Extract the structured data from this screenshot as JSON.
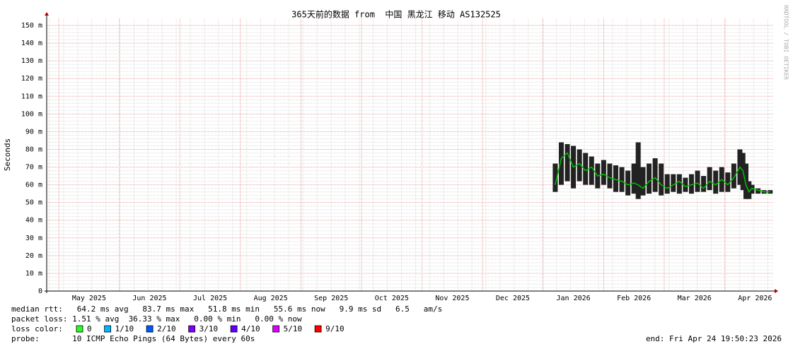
{
  "chart_data": {
    "type": "smoke",
    "title": "365天前的数据 from  中国 黑龙江 移动 AS132525",
    "y_label": "Seconds",
    "watermark": "RRDTOOL / TOBI OETIKER",
    "xlim": [
      -0.2,
      11.8
    ],
    "xticks": [
      {
        "value": 0,
        "label": "May 2025"
      },
      {
        "value": 1,
        "label": "Jun 2025"
      },
      {
        "value": 2,
        "label": "Jul 2025"
      },
      {
        "value": 3,
        "label": "Aug 2025"
      },
      {
        "value": 4,
        "label": "Sep 2025"
      },
      {
        "value": 5,
        "label": "Oct 2025"
      },
      {
        "value": 6,
        "label": "Nov 2025"
      },
      {
        "value": 7,
        "label": "Dec 2025"
      },
      {
        "value": 8,
        "label": "Jan 2026"
      },
      {
        "value": 9,
        "label": "Feb 2026"
      },
      {
        "value": 10,
        "label": "Mar 2026"
      },
      {
        "value": 11,
        "label": "Apr 2026"
      }
    ],
    "ylim": [
      0,
      154
    ],
    "yticks": [
      0,
      {
        "value": 10,
        "label": "10 m"
      },
      {
        "value": 20,
        "label": "20 m"
      },
      {
        "value": 30,
        "label": "30 m"
      },
      {
        "value": 40,
        "label": "40 m"
      },
      {
        "value": 50,
        "label": "50 m"
      },
      {
        "value": 60,
        "label": "60 m"
      },
      {
        "value": 70,
        "label": "70 m"
      },
      {
        "value": 80,
        "label": "80 m"
      },
      {
        "value": 90,
        "label": "90 m"
      },
      {
        "value": 100,
        "label": "100 m"
      },
      {
        "value": 110,
        "label": "110 m"
      },
      {
        "value": 120,
        "label": "120 m"
      },
      {
        "value": 130,
        "label": "130 m"
      },
      {
        "value": 140,
        "label": "140 m"
      },
      {
        "value": 150,
        "label": "150 m"
      }
    ],
    "grid": true,
    "x": [
      8.2,
      8.3,
      8.4,
      8.5,
      8.6,
      8.7,
      8.8,
      8.9,
      9.0,
      9.1,
      9.2,
      9.3,
      9.4,
      9.5,
      9.57,
      9.65,
      9.75,
      9.85,
      9.95,
      10.05,
      10.15,
      10.25,
      10.35,
      10.45,
      10.55,
      10.65,
      10.75,
      10.85,
      10.95,
      11.05,
      11.15,
      11.25,
      11.3,
      11.35,
      11.4,
      11.45,
      11.55,
      11.65,
      11.75
    ],
    "median": [
      60,
      75,
      78,
      70,
      72,
      68,
      70,
      65,
      66,
      64,
      63,
      62,
      60,
      61,
      60,
      58,
      62,
      64,
      60,
      58,
      60,
      62,
      59,
      60,
      61,
      58,
      62,
      60,
      63,
      60,
      64,
      70,
      68,
      60,
      56,
      58,
      57,
      56,
      56
    ],
    "low": [
      56,
      60,
      62,
      58,
      62,
      60,
      60,
      58,
      60,
      58,
      56,
      56,
      54,
      55,
      52,
      54,
      55,
      56,
      54,
      55,
      56,
      55,
      56,
      55,
      56,
      56,
      57,
      55,
      56,
      56,
      58,
      60,
      57,
      52,
      52,
      55,
      55,
      55,
      55
    ],
    "high": [
      72,
      84,
      83,
      82,
      80,
      78,
      76,
      72,
      74,
      72,
      71,
      70,
      68,
      72,
      84,
      70,
      72,
      75,
      72,
      66,
      66,
      66,
      64,
      66,
      68,
      65,
      70,
      68,
      70,
      67,
      72,
      80,
      78,
      72,
      62,
      60,
      58,
      57,
      57
    ],
    "median_color": "#00c000",
    "smoke_color": "#222222",
    "footer": {
      "rtt": "median rtt:   64.2 ms avg   83.7 ms max   51.8 ms min   55.6 ms now   9.9 ms sd   6.5   am/s",
      "loss": "packet loss: 1.51 % avg  36.33 % max   0.00 % min   0.00 % now",
      "loss_color_label": "loss color:",
      "loss_colors": [
        {
          "label": "0",
          "color": "#26ff26"
        },
        {
          "label": "1/10",
          "color": "#00b8ff"
        },
        {
          "label": "2/10",
          "color": "#0059ff"
        },
        {
          "label": "3/10",
          "color": "#7e00ff"
        },
        {
          "label": "4/10",
          "color": "#5e00ff"
        },
        {
          "label": "5/10",
          "color": "#dd00ff"
        },
        {
          "label": "9/10",
          "color": "#ff0000"
        }
      ],
      "probe": "probe:       10 ICMP Echo Pings (64 Bytes) every 60s",
      "end": "end: Fri Apr 24 19:50:23 2026"
    }
  }
}
